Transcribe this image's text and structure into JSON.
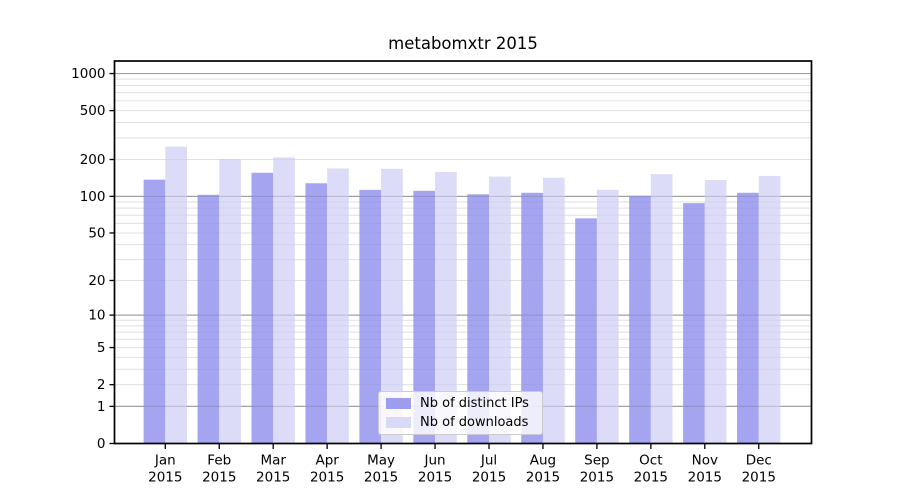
{
  "chart_data": {
    "type": "bar",
    "title": "metabomxtr 2015",
    "x": [
      [
        "Jan",
        "2015"
      ],
      [
        "Feb",
        "2015"
      ],
      [
        "Mar",
        "2015"
      ],
      [
        "Apr",
        "2015"
      ],
      [
        "May",
        "2015"
      ],
      [
        "Jun",
        "2015"
      ],
      [
        "Jul",
        "2015"
      ],
      [
        "Aug",
        "2015"
      ],
      [
        "Sep",
        "2015"
      ],
      [
        "Oct",
        "2015"
      ],
      [
        "Nov",
        "2015"
      ],
      [
        "Dec",
        "2015"
      ]
    ],
    "series": [
      {
        "name": "Nb of distinct IPs",
        "color": "#9d9df0",
        "values": [
          137,
          103,
          156,
          128,
          113,
          111,
          104,
          107,
          66,
          101,
          88,
          107
        ]
      },
      {
        "name": "Nb of downloads",
        "color": "#d9d9f8",
        "values": [
          255,
          202,
          208,
          169,
          168,
          158,
          145,
          142,
          113,
          152,
          136,
          147
        ]
      }
    ],
    "yscale": "log1p",
    "yticks": [
      0,
      1,
      2,
      5,
      10,
      20,
      50,
      100,
      200,
      500,
      1000
    ],
    "ylim": [
      0,
      1264
    ],
    "grid": {
      "major_values": [
        1,
        10,
        100,
        1000
      ],
      "minor_values": [
        2,
        3,
        4,
        5,
        6,
        7,
        8,
        9,
        20,
        30,
        40,
        50,
        60,
        70,
        80,
        90,
        200,
        300,
        400,
        500,
        600,
        700,
        800,
        900
      ],
      "major_color": "#b3b3b3",
      "minor_color": "#e8e8e8"
    },
    "legend_position": "lower center",
    "axis_color": "#000000"
  }
}
